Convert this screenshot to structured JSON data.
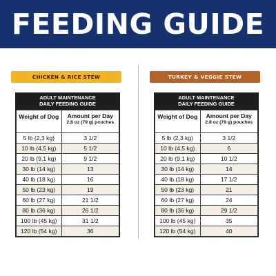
{
  "banner": {
    "title": "FEEDING GUIDE"
  },
  "left": {
    "pill": "CHICKEN & RICE STEW",
    "header_line1": "ADULT MAINTENANCE",
    "header_line2": "DAILY FEEDING GUIDE",
    "col_weight": "Weight of Dog",
    "col_amount": "Amount per Day",
    "col_amount_sub": "2.8 oz (79 g) pouches",
    "rows": [
      {
        "weight": "5 lb (2,3 kg)",
        "amount": "3 1/2"
      },
      {
        "weight": "10 lb (4,5 kg)",
        "amount": "5 1/2"
      },
      {
        "weight": "20 lb (9,1 kg)",
        "amount": "9 1/2"
      },
      {
        "weight": "30 lb (14 kg)",
        "amount": "13"
      },
      {
        "weight": "40 lb (18 kg)",
        "amount": "16"
      },
      {
        "weight": "50 lb (23 kg)",
        "amount": "19"
      },
      {
        "weight": "60 lb (27 kg)",
        "amount": "21 1/2"
      },
      {
        "weight": "80 lb (36 kg)",
        "amount": "26 1/2"
      },
      {
        "weight": "100 lb (45 kg)",
        "amount": "31 1/2"
      },
      {
        "weight": "120 lb (54 kg)",
        "amount": "36"
      }
    ]
  },
  "right": {
    "pill": "TURKEY & VEGGIE STEW",
    "header_line1": "ADULT MAINTENANCE",
    "header_line2": "DAILY FEEDING GUIDE",
    "col_weight": "Weight of Dog",
    "col_amount": "Amount per Day",
    "col_amount_sub": "2.8 oz (79 g) pouches",
    "rows": [
      {
        "weight": "5 lb (2,3 kg)",
        "amount": "3 1/2"
      },
      {
        "weight": "10 lb (4,5 kg)",
        "amount": "6"
      },
      {
        "weight": "20 lb (9,1 kg)",
        "amount": "10 1/2"
      },
      {
        "weight": "30 lb (14 kg)",
        "amount": "14"
      },
      {
        "weight": "40 lb (18 kg)",
        "amount": "17 1/2"
      },
      {
        "weight": "50 lb (23 kg)",
        "amount": "21"
      },
      {
        "weight": "60 lb (27 kg)",
        "amount": "24"
      },
      {
        "weight": "80 lb (36 kg)",
        "amount": "29 1/2"
      },
      {
        "weight": "100 lb (45 kg)",
        "amount": "35"
      },
      {
        "weight": "120 lb (54 kg)",
        "amount": "40"
      }
    ]
  },
  "colors": {
    "banner": "#15316e",
    "left_pill": "#f5b325",
    "right_pill": "#b5622a",
    "table_header": "#1e1e1e",
    "alt_row": "#f4efe6"
  }
}
